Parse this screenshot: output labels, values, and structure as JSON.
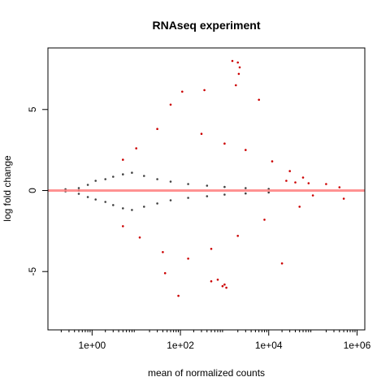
{
  "chart_data": {
    "type": "scatter",
    "title": "RNAseq experiment",
    "xlabel": "mean of normalized counts",
    "ylabel": "log fold change",
    "x_scale": "log10",
    "xlim": [
      0.1,
      1500000
    ],
    "ylim": [
      -8.6,
      8.8
    ],
    "x_ticks": [
      {
        "value": 1,
        "label": "1e+00"
      },
      {
        "value": 100,
        "label": "1e+02"
      },
      {
        "value": 10000,
        "label": "1e+04"
      },
      {
        "value": 1000000,
        "label": "1e+06"
      }
    ],
    "y_ticks": [
      {
        "value": -5,
        "label": "-5"
      },
      {
        "value": 0,
        "label": "0"
      },
      {
        "value": 5,
        "label": "5"
      }
    ],
    "reference_line": {
      "y": 0,
      "color": "#ff8080"
    },
    "grid": false,
    "legend": "none",
    "colors": {
      "nonsignificant": "#404040",
      "significant": "#cc0000",
      "reference": "#ff8080"
    },
    "series": [
      {
        "color": "#404040",
        "values": [
          {
            "x": 0.25,
            "y": -0.05
          },
          {
            "x": 0.25,
            "y": 0.08
          },
          {
            "x": 0.5,
            "y": -0.2
          },
          {
            "x": 0.5,
            "y": 0.15
          },
          {
            "x": 0.5,
            "y": 0.0
          },
          {
            "x": 0.8,
            "y": 0.35
          },
          {
            "x": 0.8,
            "y": -0.4
          },
          {
            "x": 1.2,
            "y": 0.6
          },
          {
            "x": 1.2,
            "y": -0.55
          },
          {
            "x": 2,
            "y": 0.7
          },
          {
            "x": 2,
            "y": -0.7
          },
          {
            "x": 3,
            "y": 0.85
          },
          {
            "x": 3,
            "y": -0.9
          },
          {
            "x": 5,
            "y": 1.0
          },
          {
            "x": 5,
            "y": -1.1
          },
          {
            "x": 8,
            "y": 1.1
          },
          {
            "x": 8,
            "y": -1.2
          },
          {
            "x": 15,
            "y": 0.9
          },
          {
            "x": 15,
            "y": -1.0
          },
          {
            "x": 30,
            "y": 0.7
          },
          {
            "x": 30,
            "y": -0.8
          },
          {
            "x": 60,
            "y": 0.55
          },
          {
            "x": 60,
            "y": -0.6
          },
          {
            "x": 150,
            "y": 0.4
          },
          {
            "x": 150,
            "y": -0.45
          },
          {
            "x": 400,
            "y": 0.3
          },
          {
            "x": 400,
            "y": -0.35
          },
          {
            "x": 1000,
            "y": 0.22
          },
          {
            "x": 1000,
            "y": -0.25
          },
          {
            "x": 3000,
            "y": 0.15
          },
          {
            "x": 3000,
            "y": -0.18
          },
          {
            "x": 10000,
            "y": 0.1
          },
          {
            "x": 10000,
            "y": -0.12
          }
        ]
      },
      {
        "color": "#cc0000",
        "values": [
          {
            "x": 1500,
            "y": 8.0
          },
          {
            "x": 2000,
            "y": 7.9
          },
          {
            "x": 2200,
            "y": 7.6
          },
          {
            "x": 2100,
            "y": 7.2
          },
          {
            "x": 1800,
            "y": 6.5
          },
          {
            "x": 110,
            "y": 6.1
          },
          {
            "x": 350,
            "y": 6.2
          },
          {
            "x": 6000,
            "y": 5.6
          },
          {
            "x": 60,
            "y": 5.3
          },
          {
            "x": 30,
            "y": 3.8
          },
          {
            "x": 10,
            "y": 2.6
          },
          {
            "x": 5,
            "y": 1.9
          },
          {
            "x": 300,
            "y": 3.5
          },
          {
            "x": 1000,
            "y": 2.9
          },
          {
            "x": 3000,
            "y": 2.5
          },
          {
            "x": 12000,
            "y": 1.8
          },
          {
            "x": 30000,
            "y": 1.2
          },
          {
            "x": 60000,
            "y": 0.8
          },
          {
            "x": 200000,
            "y": 0.4
          },
          {
            "x": 400000,
            "y": 0.2
          },
          {
            "x": 500000,
            "y": -0.5
          },
          {
            "x": 100000,
            "y": -0.3
          },
          {
            "x": 50000,
            "y": -1.0
          },
          {
            "x": 8000,
            "y": -1.8
          },
          {
            "x": 2000,
            "y": -2.8
          },
          {
            "x": 500,
            "y": -3.6
          },
          {
            "x": 150,
            "y": -4.2
          },
          {
            "x": 40,
            "y": -3.8
          },
          {
            "x": 12,
            "y": -2.9
          },
          {
            "x": 5,
            "y": -2.2
          },
          {
            "x": 45,
            "y": -5.1
          },
          {
            "x": 700,
            "y": -5.5
          },
          {
            "x": 500,
            "y": -5.6
          },
          {
            "x": 1000,
            "y": -5.8
          },
          {
            "x": 1100,
            "y": -6.0
          },
          {
            "x": 90,
            "y": -6.5
          },
          {
            "x": 20000,
            "y": -4.5
          },
          {
            "x": 900,
            "y": -5.9
          },
          {
            "x": 25000,
            "y": 0.6
          },
          {
            "x": 40000,
            "y": 0.5
          },
          {
            "x": 80000,
            "y": 0.45
          }
        ]
      }
    ]
  }
}
